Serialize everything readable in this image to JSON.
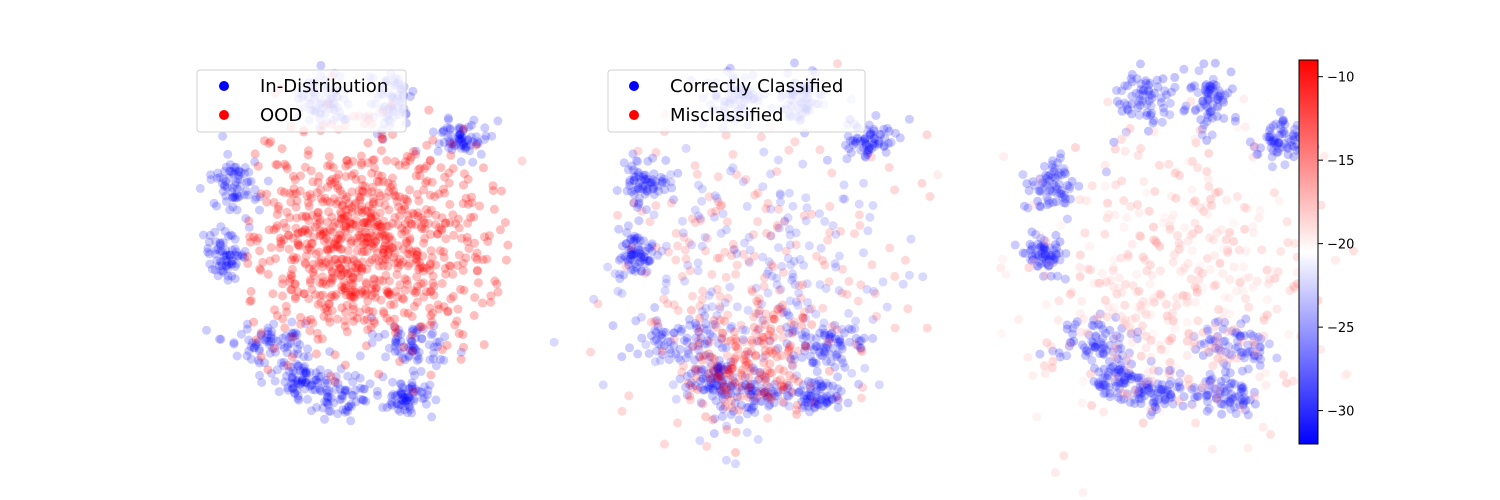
{
  "chart_data": [
    {
      "type": "scatter",
      "legend_position": "top-left",
      "series": [
        {
          "name": "In-Distribution",
          "color": "#0000ff"
        },
        {
          "name": "OOD",
          "color": "#ff0000"
        }
      ],
      "axes_visible": false
    },
    {
      "type": "scatter",
      "legend_position": "top-left",
      "series": [
        {
          "name": "Correctly Classified",
          "color": "#0000ff"
        },
        {
          "name": "Misclassified",
          "color": "#ff0000"
        }
      ],
      "axes_visible": false
    },
    {
      "type": "scatter",
      "axes_visible": false,
      "colormap": "bwr",
      "colorbar": {
        "range": [
          -32,
          -9
        ],
        "ticks": [
          -10,
          -15,
          -20,
          -25,
          -30
        ],
        "tick_labels": [
          "−10",
          "−15",
          "−20",
          "−25",
          "−30"
        ]
      }
    }
  ]
}
